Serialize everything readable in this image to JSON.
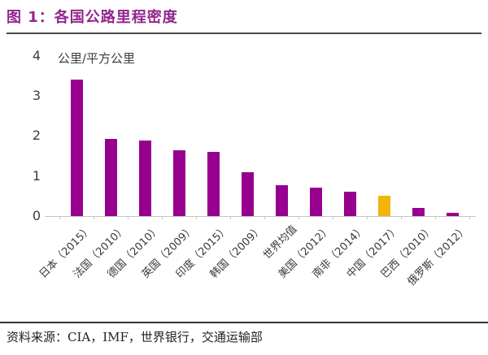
{
  "header": {
    "title": "图 1：各国公路里程密度"
  },
  "footer": {
    "source_text": "资料来源：CIA，IMF，世界银行，交通运输部"
  },
  "colors": {
    "title": "#92278F",
    "bar_default": "#97008F",
    "bar_highlight": "#F2B50C",
    "axis_text": "#3d3d3d",
    "axis_line": "#c6c6c6"
  },
  "chart_data": {
    "type": "bar",
    "title": "各国公路里程密度",
    "unit_label": "公里/平方公里",
    "categories": [
      "日本（2015）",
      "法国（2010）",
      "德国（2010）",
      "英国（2009）",
      "印度（2015）",
      "韩国（2009）",
      "世界均值",
      "美国（2012）",
      "南非（2014）",
      "中国（2017）",
      "巴西（2010）",
      "俄罗斯（2012）"
    ],
    "values": [
      3.4,
      1.92,
      1.88,
      1.65,
      1.6,
      1.1,
      0.78,
      0.72,
      0.6,
      0.5,
      0.2,
      0.08
    ],
    "highlight_index": 9,
    "bar_color": "#97008F",
    "highlight_color": "#F2B50C",
    "xlabel": "",
    "ylabel": "公里/平方公里",
    "ylim": [
      0,
      4
    ],
    "yticks": [
      0,
      1,
      2,
      3,
      4
    ],
    "grid": false,
    "legend": "none"
  }
}
